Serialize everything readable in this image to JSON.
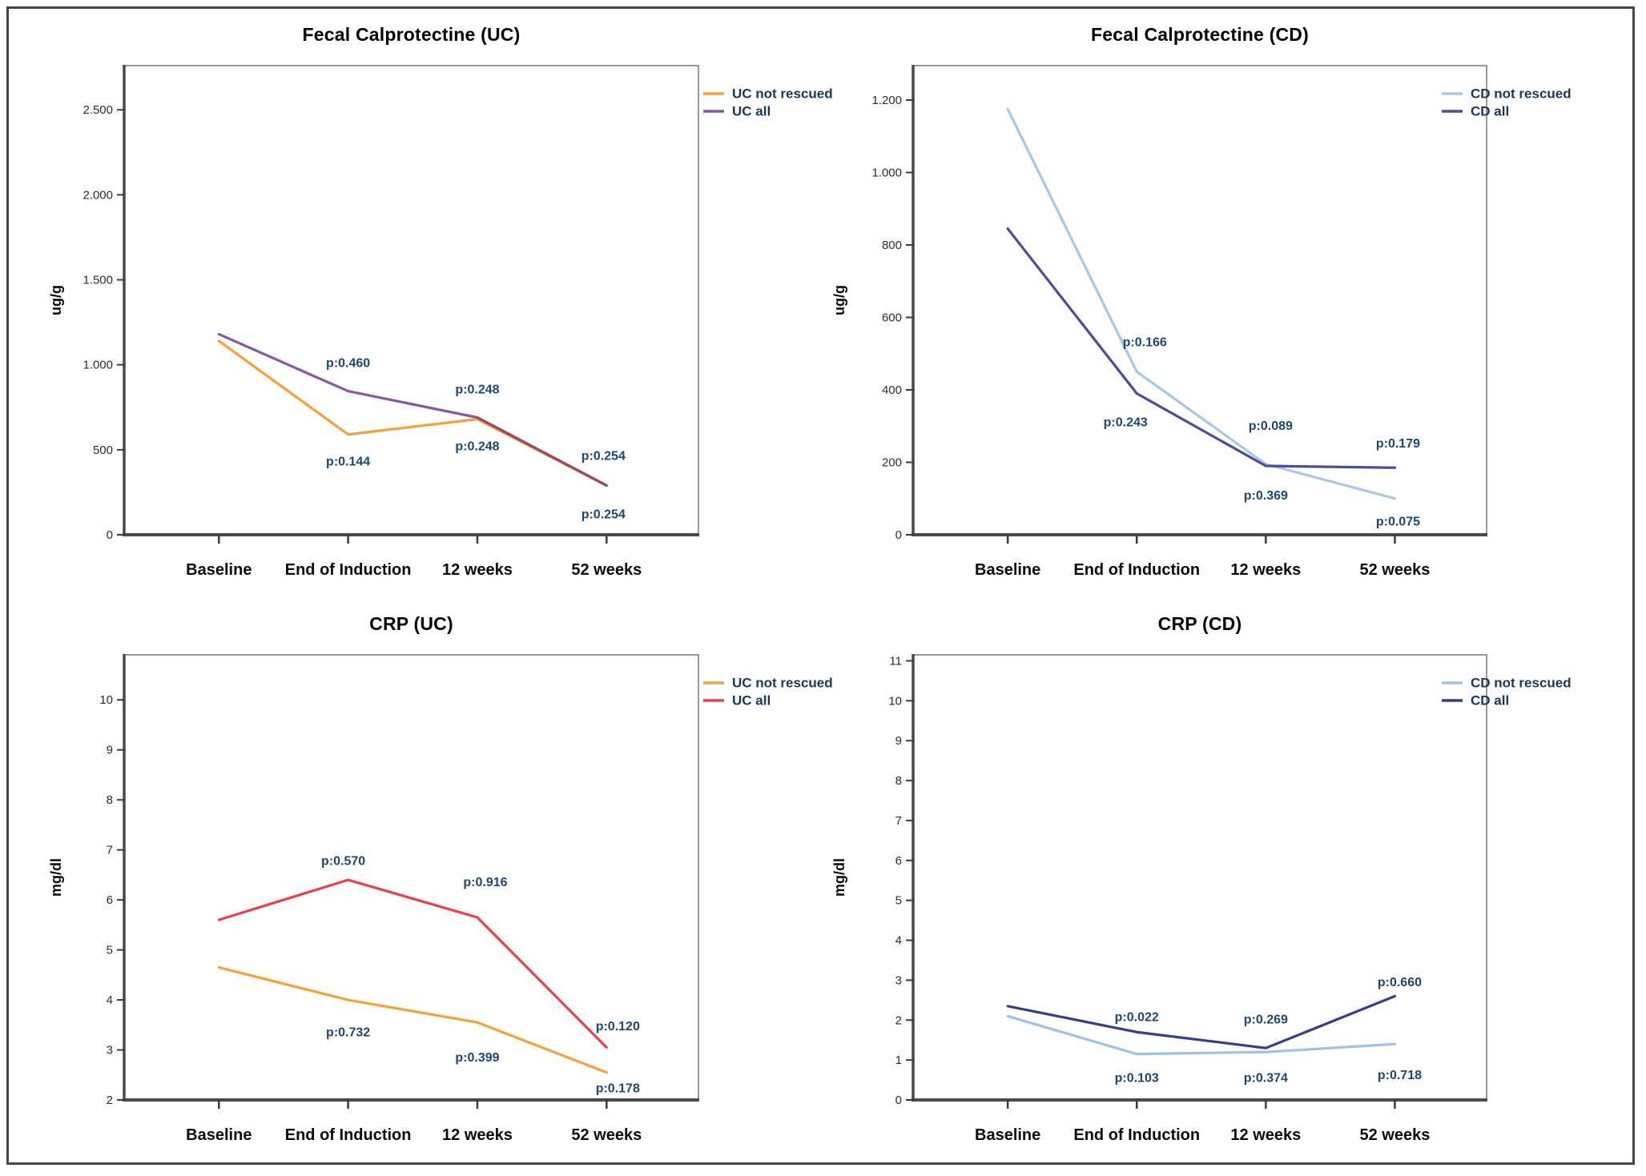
{
  "figure": {
    "background": "#ffffff",
    "border_color": "#474747"
  },
  "chart_data": [
    {
      "id": "fecal-calprotectine-uc",
      "type": "line",
      "title": "Fecal Calprotectine (UC)",
      "y_label": "ug/g",
      "y_min": 0,
      "y_max": 2760,
      "grid": false,
      "legend_position": "right-top",
      "y_ticks": [
        {
          "v": 0,
          "label": "0"
        },
        {
          "v": 500,
          "label": "500"
        },
        {
          "v": 1000,
          "label": "1.000"
        },
        {
          "v": 1500,
          "label": "1.500"
        },
        {
          "v": 2000,
          "label": "2.000"
        },
        {
          "v": 2500,
          "label": "2.500"
        }
      ],
      "categories": [
        "Baseline",
        "End of Induction",
        "12 weeks",
        "52 weeks"
      ],
      "cat_fractions": [
        0.165,
        0.39,
        0.615,
        0.84
      ],
      "series": [
        {
          "name": "UC not rescued",
          "color": "#F7A13D",
          "values": [
            1140,
            590,
            680,
            290
          ]
        },
        {
          "name": "UC all",
          "color": "#8A57A5",
          "values": [
            1180,
            845,
            690,
            290
          ]
        }
      ],
      "overlap_segment": {
        "from": 2,
        "to": 3,
        "color": "#9D4A5E"
      },
      "annotations": [
        {
          "cat": 1,
          "y": 1010,
          "dx": 0,
          "text": "p:0.460"
        },
        {
          "cat": 1,
          "y": 430,
          "dx": 0,
          "text": "p:0.144"
        },
        {
          "cat": 2,
          "y": 855,
          "dx": 0,
          "text": "p:0.248"
        },
        {
          "cat": 2,
          "y": 520,
          "dx": 0,
          "text": "p:0.248"
        },
        {
          "cat": 3,
          "y": 465,
          "dx": -4,
          "text": "p:0.254"
        },
        {
          "cat": 3,
          "y": 120,
          "dx": -4,
          "text": "p:0.254"
        }
      ]
    },
    {
      "id": "fecal-calprotectine-cd",
      "type": "line",
      "title": "Fecal Calprotectine (CD)",
      "y_label": "ug/g",
      "y_min": 0,
      "y_max": 1295,
      "grid": false,
      "legend_position": "right-top",
      "y_ticks": [
        {
          "v": 0,
          "label": "0"
        },
        {
          "v": 200,
          "label": "200"
        },
        {
          "v": 400,
          "label": "400"
        },
        {
          "v": 600,
          "label": "600"
        },
        {
          "v": 800,
          "label": "800"
        },
        {
          "v": 1000,
          "label": "1.000"
        },
        {
          "v": 1200,
          "label": "1.200"
        }
      ],
      "categories": [
        "Baseline",
        "End of Induction",
        "12 weeks",
        "52 weeks"
      ],
      "cat_fractions": [
        0.165,
        0.39,
        0.615,
        0.84
      ],
      "series": [
        {
          "name": "CD not rescued",
          "color": "#A5C8E9",
          "values": [
            1175,
            450,
            195,
            100
          ]
        },
        {
          "name": "CD all",
          "color": "#4C4C9C",
          "values": [
            845,
            390,
            190,
            185
          ]
        }
      ],
      "annotations": [
        {
          "cat": 1,
          "y": 532,
          "dx": 10,
          "text": "p:0.166"
        },
        {
          "cat": 1,
          "y": 310,
          "dx": -14,
          "text": "p:0.243"
        },
        {
          "cat": 2,
          "y": 300,
          "dx": 6,
          "text": "p:0.089"
        },
        {
          "cat": 2,
          "y": 108,
          "dx": 0,
          "text": "p:0.369"
        },
        {
          "cat": 3,
          "y": 252,
          "dx": 4,
          "text": "p:0.179"
        },
        {
          "cat": 3,
          "y": 36,
          "dx": 4,
          "text": "p:0.075"
        }
      ]
    },
    {
      "id": "crp-uc",
      "type": "line",
      "title": "CRP (UC)",
      "y_label": "mg/dl",
      "y_min": 2,
      "y_max": 10.9,
      "grid": false,
      "legend_position": "right-top",
      "y_ticks": [
        {
          "v": 2,
          "label": "2"
        },
        {
          "v": 3,
          "label": "3"
        },
        {
          "v": 4,
          "label": "4"
        },
        {
          "v": 5,
          "label": "5"
        },
        {
          "v": 6,
          "label": "6"
        },
        {
          "v": 7,
          "label": "7"
        },
        {
          "v": 8,
          "label": "8"
        },
        {
          "v": 9,
          "label": "9"
        },
        {
          "v": 10,
          "label": "10"
        }
      ],
      "categories": [
        "Baseline",
        "End of Induction",
        "12 weeks",
        "52 weeks"
      ],
      "cat_fractions": [
        0.165,
        0.39,
        0.615,
        0.84
      ],
      "series": [
        {
          "name": "UC not rescued",
          "color": "#F7A13D",
          "values": [
            4.65,
            4.0,
            3.55,
            2.55
          ]
        },
        {
          "name": "UC all",
          "color": "#EE3E4E",
          "values": [
            5.6,
            6.4,
            5.65,
            3.05
          ]
        }
      ],
      "annotations": [
        {
          "cat": 1,
          "y": 6.78,
          "dx": -6,
          "text": "p:0.570"
        },
        {
          "cat": 2,
          "y": 6.35,
          "dx": 10,
          "text": "p:0.916"
        },
        {
          "cat": 1,
          "y": 3.35,
          "dx": 0,
          "text": "p:0.732"
        },
        {
          "cat": 2,
          "y": 2.85,
          "dx": 0,
          "text": "p:0.399"
        },
        {
          "cat": 3,
          "y": 3.47,
          "dx": 14,
          "text": "p:0.120"
        },
        {
          "cat": 3,
          "y": 2.23,
          "dx": 14,
          "text": "p:0.178"
        }
      ]
    },
    {
      "id": "crp-cd",
      "type": "line",
      "title": "CRP (CD)",
      "y_label": "mg/dl",
      "y_min": 0,
      "y_max": 11.15,
      "grid": false,
      "legend_position": "right-top",
      "y_ticks": [
        {
          "v": 0,
          "label": "0"
        },
        {
          "v": 1,
          "label": "1"
        },
        {
          "v": 2,
          "label": "2"
        },
        {
          "v": 3,
          "label": "3"
        },
        {
          "v": 4,
          "label": "4"
        },
        {
          "v": 5,
          "label": "5"
        },
        {
          "v": 6,
          "label": "6"
        },
        {
          "v": 7,
          "label": "7"
        },
        {
          "v": 8,
          "label": "8"
        },
        {
          "v": 9,
          "label": "9"
        },
        {
          "v": 10,
          "label": "10"
        },
        {
          "v": 11,
          "label": "11"
        }
      ],
      "categories": [
        "Baseline",
        "End of Induction",
        "12 weeks",
        "52 weeks"
      ],
      "cat_fractions": [
        0.165,
        0.39,
        0.615,
        0.84
      ],
      "series": [
        {
          "name": "CD not rescued",
          "color": "#9DC3E6",
          "values": [
            2.1,
            1.15,
            1.2,
            1.4
          ]
        },
        {
          "name": "CD all",
          "color": "#333D93",
          "values": [
            2.35,
            1.7,
            1.3,
            2.6
          ]
        }
      ],
      "annotations": [
        {
          "cat": 1,
          "y": 2.08,
          "dx": 0,
          "text": "p:0.022"
        },
        {
          "cat": 2,
          "y": 2.02,
          "dx": 0,
          "text": "p:0.269"
        },
        {
          "cat": 3,
          "y": 2.95,
          "dx": 6,
          "text": "p:0.660"
        },
        {
          "cat": 1,
          "y": 0.55,
          "dx": 0,
          "text": "p:0.103"
        },
        {
          "cat": 2,
          "y": 0.55,
          "dx": 0,
          "text": "p:0.374"
        },
        {
          "cat": 3,
          "y": 0.62,
          "dx": 6,
          "text": "p:0.718"
        }
      ]
    }
  ]
}
